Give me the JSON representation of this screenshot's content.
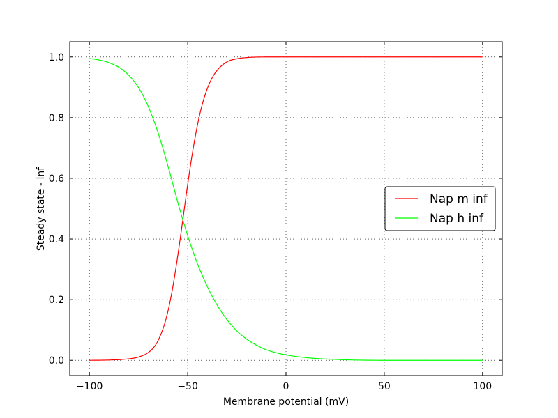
{
  "chart_data": {
    "type": "line",
    "title": "",
    "xlabel": "Membrane potential (mV)",
    "ylabel": "Steady state - inf",
    "xlim": [
      -110,
      110
    ],
    "ylim": [
      -0.05,
      1.05
    ],
    "xticks": [
      -100,
      -50,
      0,
      50,
      100
    ],
    "xtick_labels": [
      "−100",
      "−50",
      "0",
      "50",
      "100"
    ],
    "yticks": [
      0.0,
      0.2,
      0.4,
      0.6,
      0.8,
      1.0
    ],
    "ytick_labels": [
      "0.0",
      "0.2",
      "0.4",
      "0.6",
      "0.8",
      "1.0"
    ],
    "grid": true,
    "legend_position": "center-right",
    "series": [
      {
        "name": "Nap m inf",
        "color": "#ff0000",
        "x": [
          -100,
          -90,
          -80,
          -75,
          -70,
          -67,
          -65,
          -62,
          -60,
          -58,
          -56,
          -54,
          -52,
          -50,
          -48,
          -46,
          -44,
          -42,
          -40,
          -38,
          -35,
          -30,
          -25,
          -20,
          -10,
          0,
          25,
          50,
          75,
          100
        ],
        "y": [
          0.0,
          0.001,
          0.005,
          0.011,
          0.026,
          0.045,
          0.066,
          0.115,
          0.163,
          0.226,
          0.304,
          0.392,
          0.486,
          0.58,
          0.667,
          0.743,
          0.807,
          0.857,
          0.896,
          0.926,
          0.956,
          0.984,
          0.994,
          0.998,
          1.0,
          1.0,
          1.0,
          1.0,
          1.0,
          1.0
        ]
      },
      {
        "name": "Nap h inf",
        "color": "#00ff00",
        "x": [
          -100,
          -95,
          -90,
          -85,
          -80,
          -75,
          -70,
          -65,
          -60,
          -55,
          -52,
          -50,
          -48,
          -45,
          -40,
          -35,
          -30,
          -25,
          -20,
          -15,
          -10,
          -5,
          0,
          10,
          25,
          50,
          75,
          100
        ],
        "y": [
          0.995,
          0.99,
          0.981,
          0.966,
          0.94,
          0.899,
          0.836,
          0.749,
          0.64,
          0.52,
          0.453,
          0.411,
          0.372,
          0.318,
          0.243,
          0.182,
          0.134,
          0.097,
          0.07,
          0.05,
          0.035,
          0.025,
          0.018,
          0.009,
          0.003,
          0.0,
          0.0,
          0.0
        ]
      }
    ]
  }
}
